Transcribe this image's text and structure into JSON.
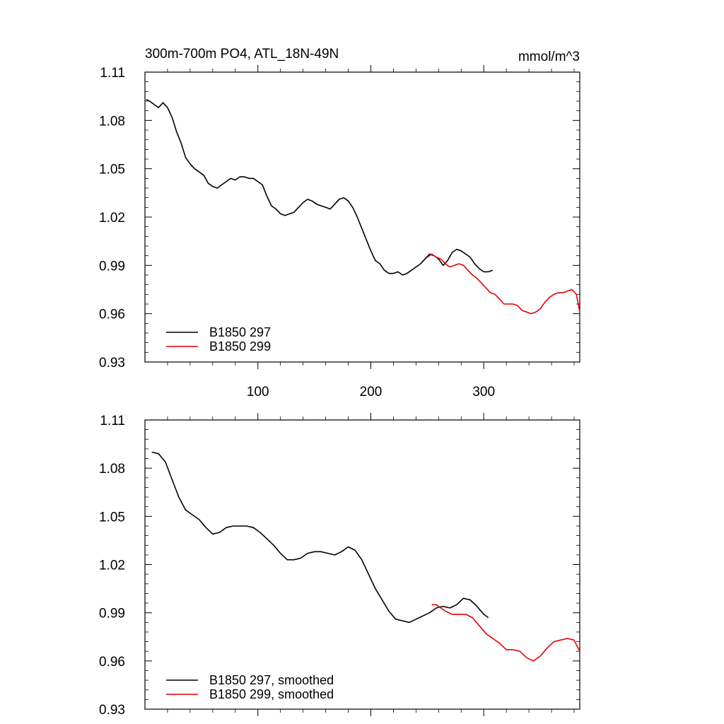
{
  "chart_data": [
    {
      "type": "line",
      "title": "300m-700m PO4, ATL_18N-49N",
      "units": "mmol/m^3",
      "xlabel": "",
      "ylabel": "",
      "xlim": [
        0,
        385
      ],
      "ylim": [
        0.93,
        1.11
      ],
      "xticks": [
        100,
        200,
        300
      ],
      "xtick_labels": [
        "100",
        "200",
        "300"
      ],
      "yticks": [
        0.93,
        0.96,
        0.99,
        1.02,
        1.05,
        1.08,
        1.11
      ],
      "ytick_labels": [
        "0.93",
        "0.96",
        "0.99",
        "1.02",
        "1.05",
        "1.08",
        "1.11"
      ],
      "legend_position": "bottom-left",
      "series": [
        {
          "name": "B1850 297",
          "color": "#000000",
          "x": [
            1,
            4,
            8,
            12,
            16,
            20,
            24,
            28,
            32,
            36,
            40,
            44,
            48,
            52,
            56,
            60,
            64,
            68,
            72,
            76,
            80,
            84,
            88,
            92,
            96,
            100,
            104,
            108,
            112,
            116,
            120,
            124,
            128,
            132,
            136,
            140,
            144,
            148,
            152,
            156,
            160,
            164,
            168,
            172,
            176,
            180,
            184,
            188,
            192,
            196,
            200,
            204,
            208,
            212,
            216,
            220,
            224,
            228,
            232,
            236,
            240,
            244,
            248,
            252,
            256,
            260,
            264,
            268,
            272,
            276,
            280,
            284,
            288,
            292,
            296,
            300,
            304,
            308
          ],
          "values": [
            1.093,
            1.092,
            1.09,
            1.088,
            1.091,
            1.088,
            1.082,
            1.073,
            1.066,
            1.057,
            1.053,
            1.05,
            1.048,
            1.046,
            1.041,
            1.039,
            1.038,
            1.04,
            1.042,
            1.044,
            1.043,
            1.045,
            1.045,
            1.044,
            1.044,
            1.042,
            1.04,
            1.033,
            1.027,
            1.025,
            1.022,
            1.021,
            1.022,
            1.023,
            1.026,
            1.029,
            1.031,
            1.03,
            1.028,
            1.027,
            1.026,
            1.025,
            1.028,
            1.031,
            1.032,
            1.03,
            1.026,
            1.02,
            1.013,
            1.006,
            0.999,
            0.993,
            0.991,
            0.987,
            0.985,
            0.985,
            0.986,
            0.984,
            0.985,
            0.987,
            0.989,
            0.991,
            0.994,
            0.997,
            0.996,
            0.994,
            0.99,
            0.993,
            0.998,
            1.0,
            0.999,
            0.997,
            0.995,
            0.991,
            0.988,
            0.986,
            0.986,
            0.987
          ]
        },
        {
          "name": "B1850 299",
          "color": "#e60000",
          "x": [
            250,
            254,
            258,
            262,
            266,
            270,
            274,
            278,
            282,
            286,
            290,
            294,
            298,
            302,
            306,
            310,
            314,
            318,
            322,
            326,
            330,
            334,
            338,
            342,
            346,
            350,
            354,
            358,
            362,
            366,
            370,
            374,
            378,
            382,
            385
          ],
          "values": [
            0.995,
            0.997,
            0.995,
            0.994,
            0.991,
            0.989,
            0.99,
            0.991,
            0.99,
            0.987,
            0.984,
            0.982,
            0.979,
            0.976,
            0.973,
            0.972,
            0.969,
            0.966,
            0.966,
            0.966,
            0.965,
            0.962,
            0.961,
            0.96,
            0.961,
            0.963,
            0.967,
            0.97,
            0.972,
            0.973,
            0.973,
            0.974,
            0.975,
            0.972,
            0.961
          ]
        }
      ]
    },
    {
      "type": "line",
      "title": "",
      "xlabel": "",
      "ylabel": "",
      "xlim": [
        0,
        385
      ],
      "ylim": [
        0.93,
        1.11
      ],
      "xticks": [
        100,
        200,
        300
      ],
      "yticks": [
        0.93,
        0.96,
        0.99,
        1.02,
        1.05,
        1.08,
        1.11
      ],
      "ytick_labels": [
        "0.93",
        "0.96",
        "0.99",
        "1.02",
        "1.05",
        "1.08",
        "1.11"
      ],
      "legend_position": "bottom-left",
      "series": [
        {
          "name": "B1850 297, smoothed",
          "color": "#000000",
          "x": [
            6,
            12,
            18,
            24,
            30,
            36,
            42,
            48,
            54,
            60,
            66,
            72,
            78,
            84,
            90,
            96,
            102,
            108,
            114,
            120,
            126,
            132,
            138,
            144,
            150,
            156,
            162,
            168,
            174,
            180,
            186,
            192,
            198,
            204,
            210,
            216,
            222,
            228,
            234,
            240,
            246,
            252,
            258,
            264,
            270,
            276,
            282,
            288,
            294,
            300,
            304
          ],
          "values": [
            1.09,
            1.089,
            1.084,
            1.073,
            1.062,
            1.054,
            1.051,
            1.048,
            1.043,
            1.039,
            1.04,
            1.043,
            1.044,
            1.044,
            1.044,
            1.043,
            1.04,
            1.036,
            1.032,
            1.027,
            1.023,
            1.023,
            1.024,
            1.027,
            1.028,
            1.028,
            1.027,
            1.026,
            1.028,
            1.031,
            1.029,
            1.023,
            1.014,
            1.005,
            0.998,
            0.991,
            0.986,
            0.985,
            0.984,
            0.986,
            0.988,
            0.99,
            0.993,
            0.994,
            0.993,
            0.995,
            0.999,
            0.998,
            0.994,
            0.989,
            0.987
          ]
        },
        {
          "name": "B1850 299, smoothed",
          "color": "#e60000",
          "x": [
            254,
            258,
            262,
            266,
            272,
            278,
            284,
            290,
            296,
            302,
            308,
            314,
            320,
            326,
            332,
            338,
            344,
            350,
            356,
            362,
            368,
            374,
            380,
            385
          ],
          "values": [
            0.995,
            0.995,
            0.993,
            0.991,
            0.989,
            0.989,
            0.989,
            0.987,
            0.982,
            0.977,
            0.974,
            0.971,
            0.967,
            0.967,
            0.966,
            0.962,
            0.96,
            0.963,
            0.968,
            0.972,
            0.973,
            0.974,
            0.973,
            0.966
          ]
        }
      ]
    }
  ]
}
